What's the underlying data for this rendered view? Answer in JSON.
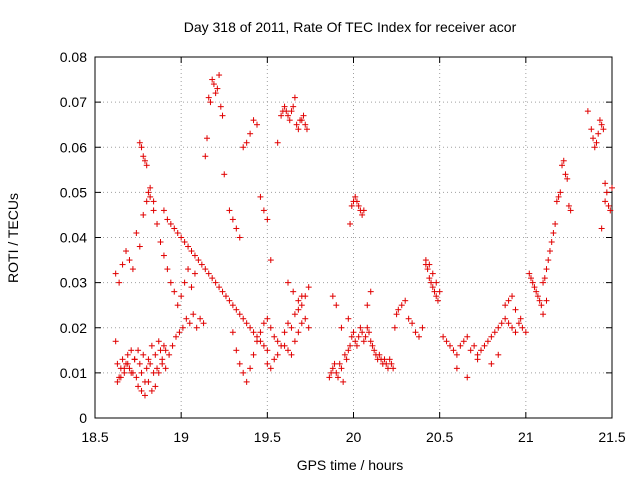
{
  "chart_data": {
    "type": "scatter",
    "title": "Day 318 of 2011, Rate Of TEC Index for receiver acor",
    "xlabel": "GPS time / hours",
    "ylabel": "ROTI / TECUs",
    "xlim": [
      18.5,
      21.5
    ],
    "ylim": [
      0,
      0.08
    ],
    "x_ticks": [
      18.5,
      19,
      19.5,
      20,
      20.5,
      21,
      21.5
    ],
    "x_tick_labels": [
      "18.5",
      "19",
      "19.5",
      "20",
      "20.5",
      "21",
      "21.5"
    ],
    "y_ticks": [
      0,
      0.01,
      0.02,
      0.03,
      0.04,
      0.05,
      0.06,
      0.07,
      0.08
    ],
    "y_tick_labels": [
      "0",
      "0.01",
      "0.02",
      "0.03",
      "0.04",
      "0.05",
      "0.06",
      "0.07",
      "0.08"
    ],
    "grid": true,
    "marker": "plus",
    "color": "#e00000",
    "series": [
      {
        "x": [
          18.62,
          18.63,
          18.64,
          18.65,
          18.66,
          18.67,
          18.68,
          18.69,
          18.7,
          18.71,
          18.72,
          18.73,
          18.74,
          18.75,
          18.76,
          18.77,
          18.78,
          18.79,
          18.8,
          18.81,
          18.82,
          18.83,
          18.84,
          18.85,
          18.86,
          18.87,
          18.88,
          18.89,
          18.9,
          18.91,
          18.62,
          18.64,
          18.66,
          18.68,
          18.7,
          18.72,
          18.74,
          18.76,
          18.78,
          18.8,
          18.82,
          18.84,
          18.86,
          18.88,
          18.9,
          18.92,
          18.94,
          18.96,
          18.98,
          19.0,
          19.02,
          19.04,
          19.06,
          19.08,
          18.63,
          18.65,
          18.67,
          18.69,
          18.71,
          18.73,
          18.75,
          18.77,
          18.79,
          18.81,
          18.83,
          18.85,
          18.87,
          18.89,
          18.91,
          18.93,
          18.95,
          18.97,
          18.99,
          19.01,
          19.03,
          19.05,
          19.07,
          19.09,
          19.11,
          19.13,
          18.76,
          18.77,
          18.78,
          18.79,
          18.8,
          18.81,
          18.82,
          18.84,
          18.9,
          18.92,
          18.94,
          18.96,
          18.98,
          19.0,
          19.02,
          19.04,
          19.06,
          19.08,
          19.1,
          19.12,
          19.14,
          19.16,
          19.18,
          19.2,
          19.22,
          19.24,
          19.26,
          19.28,
          19.3,
          19.32,
          19.34,
          19.36,
          19.38,
          19.4,
          19.42,
          19.44,
          19.46,
          19.48,
          19.5,
          19.14,
          19.15,
          19.16,
          19.17,
          19.18,
          19.19,
          19.2,
          19.21,
          19.22,
          19.23,
          19.24,
          19.25,
          19.28,
          19.3,
          19.32,
          19.34,
          19.36,
          19.38,
          19.4,
          19.42,
          19.44,
          19.46,
          19.48,
          19.5,
          19.52,
          19.3,
          19.32,
          19.34,
          19.36,
          19.38,
          19.4,
          19.42,
          19.44,
          19.46,
          19.48,
          19.5,
          19.52,
          19.54,
          19.56,
          19.58,
          19.6,
          19.62,
          19.64,
          19.66,
          19.68,
          19.7,
          19.72,
          19.56,
          19.58,
          19.59,
          19.6,
          19.61,
          19.62,
          19.63,
          19.64,
          19.65,
          19.66,
          19.67,
          19.68,
          19.69,
          19.7,
          19.71,
          19.72,
          19.73,
          19.62,
          19.65,
          19.68,
          19.7,
          19.74,
          19.6,
          19.62,
          19.64,
          19.66,
          19.68,
          19.7,
          19.72,
          19.74,
          19.5,
          19.52,
          19.54,
          19.56,
          19.86,
          19.87,
          19.88,
          19.89,
          19.9,
          19.91,
          19.92,
          19.93,
          19.94,
          19.95,
          19.96,
          19.97,
          19.98,
          19.99,
          20.0,
          20.01,
          20.02,
          20.03,
          20.04,
          20.05,
          20.06,
          20.07,
          20.08,
          20.09,
          20.1,
          20.11,
          20.12,
          20.13,
          20.14,
          20.15,
          20.16,
          20.17,
          20.18,
          20.19,
          20.2,
          20.21,
          20.22,
          20.23,
          20.24,
          20.25,
          19.98,
          19.99,
          20.0,
          20.01,
          20.02,
          20.03,
          20.04,
          20.05,
          20.06,
          20.08,
          20.1,
          19.88,
          19.9,
          19.93,
          19.97,
          20.26,
          20.28,
          20.3,
          20.32,
          20.34,
          20.36,
          20.38,
          20.4,
          20.42,
          20.44,
          20.46,
          20.48,
          20.5,
          20.42,
          20.43,
          20.44,
          20.45,
          20.46,
          20.47,
          20.48,
          20.49,
          20.52,
          20.54,
          20.56,
          20.58,
          20.6,
          20.62,
          20.64,
          20.66,
          20.68,
          20.7,
          20.72,
          20.74,
          20.76,
          20.78,
          20.8,
          20.82,
          20.84,
          20.86,
          20.88,
          20.9,
          20.92,
          20.94,
          20.96,
          20.98,
          21.0,
          20.6,
          20.66,
          20.72,
          20.8,
          20.84,
          20.88,
          20.9,
          20.92,
          20.94,
          20.97,
          21.02,
          21.03,
          21.04,
          21.05,
          21.06,
          21.07,
          21.08,
          21.09,
          21.1,
          21.11,
          21.12,
          21.13,
          21.14,
          21.15,
          21.16,
          21.17,
          21.18,
          21.19,
          21.2,
          21.21,
          21.22,
          21.23,
          21.24,
          21.25,
          21.26,
          21.1,
          21.12,
          21.36,
          21.38,
          21.39,
          21.4,
          21.41,
          21.42,
          21.43,
          21.44,
          21.45,
          21.46,
          21.47,
          21.48,
          21.49,
          21.5,
          21.44,
          21.46
        ],
        "y": [
          0.017,
          0.012,
          0.009,
          0.011,
          0.013,
          0.01,
          0.012,
          0.014,
          0.011,
          0.015,
          0.01,
          0.013,
          0.009,
          0.015,
          0.012,
          0.01,
          0.014,
          0.008,
          0.011,
          0.013,
          0.012,
          0.016,
          0.01,
          0.014,
          0.011,
          0.017,
          0.015,
          0.013,
          0.016,
          0.015,
          0.032,
          0.03,
          0.034,
          0.037,
          0.035,
          0.033,
          0.041,
          0.038,
          0.045,
          0.048,
          0.051,
          0.046,
          0.043,
          0.039,
          0.036,
          0.033,
          0.03,
          0.028,
          0.025,
          0.027,
          0.03,
          0.033,
          0.029,
          0.032,
          0.008,
          0.009,
          0.011,
          0.012,
          0.01,
          0.013,
          0.007,
          0.006,
          0.005,
          0.008,
          0.006,
          0.007,
          0.01,
          0.012,
          0.011,
          0.014,
          0.016,
          0.018,
          0.019,
          0.02,
          0.022,
          0.021,
          0.023,
          0.02,
          0.022,
          0.021,
          0.061,
          0.06,
          0.058,
          0.057,
          0.056,
          0.05,
          0.049,
          0.048,
          0.046,
          0.044,
          0.043,
          0.042,
          0.041,
          0.04,
          0.039,
          0.038,
          0.037,
          0.036,
          0.035,
          0.034,
          0.033,
          0.032,
          0.031,
          0.03,
          0.029,
          0.028,
          0.027,
          0.026,
          0.025,
          0.024,
          0.023,
          0.022,
          0.021,
          0.02,
          0.019,
          0.018,
          0.017,
          0.016,
          0.015,
          0.058,
          0.062,
          0.071,
          0.07,
          0.075,
          0.074,
          0.072,
          0.073,
          0.076,
          0.069,
          0.067,
          0.054,
          0.046,
          0.044,
          0.042,
          0.04,
          0.06,
          0.061,
          0.063,
          0.066,
          0.065,
          0.049,
          0.046,
          0.044,
          0.035,
          0.019,
          0.015,
          0.012,
          0.01,
          0.008,
          0.011,
          0.014,
          0.017,
          0.019,
          0.021,
          0.022,
          0.02,
          0.018,
          0.017,
          0.016,
          0.019,
          0.021,
          0.02,
          0.023,
          0.024,
          0.025,
          0.027,
          0.061,
          0.067,
          0.068,
          0.069,
          0.068,
          0.067,
          0.066,
          0.068,
          0.069,
          0.071,
          0.065,
          0.064,
          0.066,
          0.066,
          0.067,
          0.065,
          0.064,
          0.03,
          0.028,
          0.026,
          0.027,
          0.029,
          0.016,
          0.015,
          0.014,
          0.017,
          0.019,
          0.021,
          0.022,
          0.02,
          0.012,
          0.011,
          0.013,
          0.014,
          0.009,
          0.01,
          0.011,
          0.012,
          0.01,
          0.009,
          0.012,
          0.011,
          0.008,
          0.014,
          0.013,
          0.015,
          0.016,
          0.018,
          0.019,
          0.017,
          0.016,
          0.018,
          0.02,
          0.019,
          0.017,
          0.018,
          0.02,
          0.019,
          0.017,
          0.016,
          0.015,
          0.014,
          0.013,
          0.014,
          0.013,
          0.012,
          0.013,
          0.012,
          0.011,
          0.013,
          0.012,
          0.011,
          0.02,
          0.023,
          0.043,
          0.047,
          0.048,
          0.049,
          0.048,
          0.047,
          0.046,
          0.045,
          0.046,
          0.025,
          0.028,
          0.027,
          0.025,
          0.02,
          0.022,
          0.024,
          0.025,
          0.026,
          0.022,
          0.021,
          0.019,
          0.018,
          0.02,
          0.035,
          0.034,
          0.032,
          0.03,
          0.028,
          0.034,
          0.033,
          0.031,
          0.03,
          0.029,
          0.028,
          0.027,
          0.026,
          0.018,
          0.017,
          0.016,
          0.015,
          0.014,
          0.016,
          0.017,
          0.018,
          0.015,
          0.016,
          0.014,
          0.015,
          0.016,
          0.017,
          0.018,
          0.019,
          0.02,
          0.021,
          0.022,
          0.021,
          0.02,
          0.019,
          0.021,
          0.02,
          0.019,
          0.011,
          0.009,
          0.013,
          0.012,
          0.014,
          0.025,
          0.026,
          0.027,
          0.024,
          0.022,
          0.032,
          0.031,
          0.03,
          0.029,
          0.028,
          0.027,
          0.026,
          0.025,
          0.03,
          0.031,
          0.033,
          0.035,
          0.037,
          0.039,
          0.041,
          0.043,
          0.048,
          0.049,
          0.05,
          0.056,
          0.057,
          0.054,
          0.053,
          0.047,
          0.046,
          0.023,
          0.026,
          0.068,
          0.064,
          0.062,
          0.06,
          0.061,
          0.063,
          0.066,
          0.065,
          0.064,
          0.052,
          0.05,
          0.047,
          0.046,
          0.051,
          0.042,
          0.048
        ]
      }
    ]
  }
}
